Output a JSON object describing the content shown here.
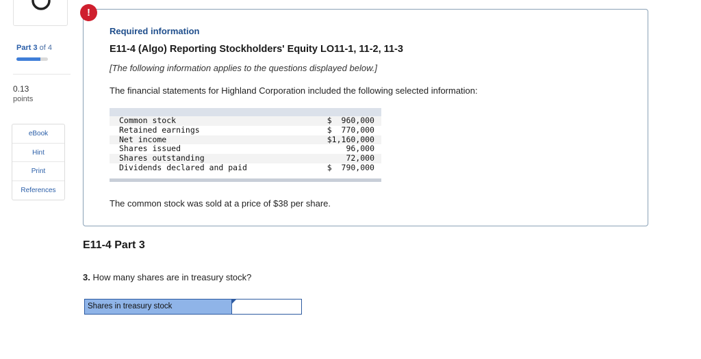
{
  "sidebar": {
    "part_prefix": "Part",
    "part_current": "3",
    "part_suffix": "of 4",
    "progress_fraction": 0.75,
    "points_value": "0.13",
    "points_label": "points",
    "menu": [
      {
        "label": "eBook"
      },
      {
        "label": "Hint"
      },
      {
        "label": "Print"
      },
      {
        "label": "References"
      }
    ]
  },
  "info": {
    "alert_symbol": "!",
    "required_title": "Required information",
    "exercise_title": "E11-4 (Algo) Reporting Stockholders' Equity LO11-1, 11-2, 11-3",
    "note": "[The following information applies to the questions displayed below.]",
    "intro": "The financial statements for Highland  Corporation included the following selected information:",
    "table": [
      {
        "label": "Common stock",
        "value": "$  960,000"
      },
      {
        "label": "Retained earnings",
        "value": "$  770,000"
      },
      {
        "label": "Net income",
        "value": "$1,160,000"
      },
      {
        "label": "Shares issued",
        "value": "96,000"
      },
      {
        "label": "Shares outstanding",
        "value": "72,000"
      },
      {
        "label": "Dividends declared and paid",
        "value": "$  790,000"
      }
    ],
    "price_text": "The common stock was sold at a price of $38 per share."
  },
  "question": {
    "part_title": "E11-4 Part 3",
    "number": "3.",
    "text": "How many shares are in treasury stock?",
    "answer_label": "Shares in treasury stock",
    "answer_value": ""
  },
  "colors": {
    "accent": "#2a5ea8",
    "alert": "#cf1f2e",
    "answer_label_bg": "#8fb4e8"
  },
  "icons": {
    "top_tile": "circular-arrow-icon",
    "alert": "exclamation-icon"
  }
}
